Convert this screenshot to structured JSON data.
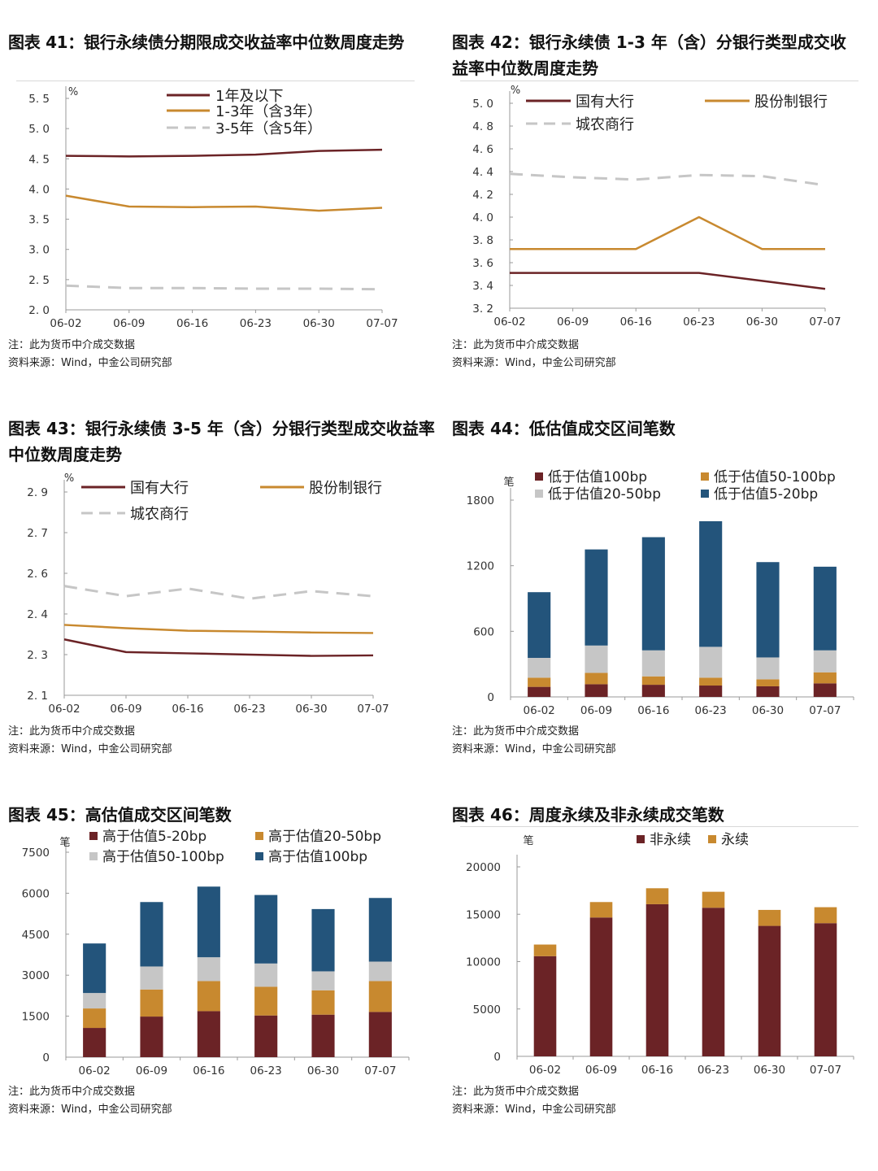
{
  "colors": {
    "red": "#6b2326",
    "gold": "#c8892f",
    "gray": "#c6c6c6",
    "blue": "#23547b",
    "axis": "#999999"
  },
  "figures": [
    {
      "title": "图表 41：银行永续债分期限成交收益率中位数周度走势",
      "note": "注：此为货币中介成交数据",
      "source": "资料来源：Wind，中金公司研究部"
    },
    {
      "title": "图表 42：银行永续债 1-3 年（含）分银行类型成交收益率中位数周度走势",
      "note": "注：此为货币中介成交数据",
      "source": "资料来源：Wind，中金公司研究部"
    },
    {
      "title": "图表 43：银行永续债 3-5 年（含）分银行类型成交收益率中位数周度走势",
      "note": "注：此为货币中介成交数据",
      "source": "资料来源：Wind，中金公司研究部"
    },
    {
      "title": "图表 44：低估值成交区间笔数",
      "note": "注：此为货币中介成交数据",
      "source": "资料来源：Wind，中金公司研究部"
    },
    {
      "title": "图表 45：高估值成交区间笔数",
      "note": "注：此为货币中介成交数据",
      "source": "资料来源：Wind，中金公司研究部"
    },
    {
      "title": "图表 46：周度永续及非永续成交笔数",
      "note": "注：此为货币中介成交数据",
      "source": "资料来源：Wind，中金公司研究部"
    }
  ],
  "chart_data": [
    {
      "type": "line",
      "unit": "%",
      "categories": [
        "06-02",
        "06-09",
        "06-16",
        "06-23",
        "06-30",
        "07-07"
      ],
      "ylim": [
        2.0,
        5.5
      ],
      "yticks": [
        2.0,
        2.5,
        3.0,
        3.5,
        4.0,
        4.5,
        5.0,
        5.5
      ],
      "ytick_labels": [
        "2. 0",
        "2. 5",
        "3. 0",
        "3. 5",
        "4. 0",
        "4. 5",
        "5. 0",
        "5. 5"
      ],
      "series": [
        {
          "name": "1年及以下",
          "color": "#6b2326",
          "dash": false,
          "values": [
            4.55,
            4.54,
            4.55,
            4.57,
            4.63,
            4.65
          ]
        },
        {
          "name": "1-3年（含3年）",
          "color": "#c8892f",
          "dash": false,
          "values": [
            3.89,
            3.71,
            3.7,
            3.71,
            3.64,
            3.69
          ]
        },
        {
          "name": "3-5年（含5年）",
          "color": "#c6c6c6",
          "dash": true,
          "values": [
            2.4,
            2.36,
            2.36,
            2.35,
            2.35,
            2.34
          ]
        }
      ]
    },
    {
      "type": "line",
      "unit": "%",
      "categories": [
        "06-02",
        "06-09",
        "06-16",
        "06-23",
        "06-30",
        "07-07"
      ],
      "ylim": [
        3.2,
        5.0
      ],
      "yticks": [
        3.2,
        3.4,
        3.6,
        3.8,
        4.0,
        4.2,
        4.4,
        4.6,
        4.8,
        5.0
      ],
      "ytick_labels": [
        "3. 2",
        "3. 4",
        "3. 6",
        "3. 8",
        "4. 0",
        "4. 2",
        "4. 4",
        "4. 6",
        "4. 8",
        "5. 0"
      ],
      "series": [
        {
          "name": "国有大行",
          "color": "#6b2326",
          "dash": false,
          "values": [
            3.51,
            3.51,
            3.51,
            3.51,
            3.44,
            3.37
          ]
        },
        {
          "name": "股份制银行",
          "color": "#c8892f",
          "dash": false,
          "values": [
            3.72,
            3.72,
            3.72,
            4.0,
            3.72,
            3.72
          ]
        },
        {
          "name": "城农商行",
          "color": "#c6c6c6",
          "dash": true,
          "values": [
            4.38,
            4.35,
            4.33,
            4.37,
            4.36,
            4.28
          ]
        }
      ]
    },
    {
      "type": "line",
      "unit": "%",
      "categories": [
        "06-02",
        "06-09",
        "06-16",
        "06-23",
        "06-30",
        "07-07"
      ],
      "ylim": [
        2.1,
        2.9
      ],
      "yticks": [
        2.1,
        2.26,
        2.42,
        2.58,
        2.74,
        2.9
      ],
      "ytick_labels": [
        "2. 1",
        "2. 3",
        "2. 4",
        "2. 6",
        "2. 7",
        "2. 9"
      ],
      "series": [
        {
          "name": "国有大行",
          "color": "#6b2326",
          "dash": false,
          "values": [
            2.32,
            2.27,
            2.265,
            2.26,
            2.255,
            2.257
          ]
        },
        {
          "name": "股份制银行",
          "color": "#c8892f",
          "dash": false,
          "values": [
            2.377,
            2.364,
            2.354,
            2.351,
            2.347,
            2.345
          ]
        },
        {
          "name": "城农商行",
          "color": "#c6c6c6",
          "dash": true,
          "values": [
            2.53,
            2.49,
            2.52,
            2.48,
            2.51,
            2.49
          ]
        }
      ]
    },
    {
      "type": "bar",
      "stacked": true,
      "unit": "笔",
      "categories": [
        "06-02",
        "06-09",
        "06-16",
        "06-23",
        "06-30",
        "07-07"
      ],
      "ylim": [
        0,
        1800
      ],
      "yticks": [
        0,
        600,
        1200,
        1800
      ],
      "ytick_labels": [
        "0",
        "600",
        "1200",
        "1800"
      ],
      "series": [
        {
          "name": "低于估值100bp",
          "color": "#6b2326",
          "values": [
            92,
            116,
            111,
            104,
            97,
            124
          ]
        },
        {
          "name": "低于估值50-100bp",
          "color": "#c8892f",
          "values": [
            84,
            104,
            77,
            72,
            64,
            101
          ]
        },
        {
          "name": "低于估值20-50bp",
          "color": "#c6c6c6",
          "values": [
            181,
            250,
            238,
            282,
            200,
            201
          ]
        },
        {
          "name": "低于估值5-20bp",
          "color": "#23547b",
          "values": [
            601,
            879,
            1035,
            1149,
            872,
            765
          ]
        }
      ]
    },
    {
      "type": "bar",
      "stacked": true,
      "unit": "笔",
      "categories": [
        "06-02",
        "06-09",
        "06-16",
        "06-23",
        "06-30",
        "07-07"
      ],
      "ylim": [
        0,
        7500
      ],
      "yticks": [
        0,
        1500,
        3000,
        4500,
        6000,
        7500
      ],
      "ytick_labels": [
        "0",
        "1500",
        "3000",
        "4500",
        "6000",
        "7500"
      ],
      "series": [
        {
          "name": "高于估值5-20bp",
          "color": "#6b2326",
          "values": [
            1070,
            1486,
            1684,
            1526,
            1556,
            1655
          ]
        },
        {
          "name": "高于估值20-50bp",
          "color": "#c8892f",
          "values": [
            713,
            991,
            1100,
            1050,
            891,
            1129
          ]
        },
        {
          "name": "高于估值50-100bp",
          "color": "#c6c6c6",
          "values": [
            565,
            842,
            872,
            852,
            694,
            713
          ]
        },
        {
          "name": "高于估值100bp",
          "color": "#23547b",
          "values": [
            1813,
            2358,
            2586,
            2507,
            2279,
            2329
          ]
        }
      ]
    },
    {
      "type": "bar",
      "stacked": true,
      "unit": "笔",
      "categories": [
        "06-02",
        "06-09",
        "06-16",
        "06-23",
        "06-30",
        "07-07"
      ],
      "ylim": [
        0,
        23000
      ],
      "yticks": [
        0,
        5000,
        10000,
        15000,
        20000
      ],
      "ytick_labels": [
        "0",
        "5000",
        "10000",
        "15000",
        "20000"
      ],
      "series": [
        {
          "name": "非永续",
          "color": "#6b2326",
          "values": [
            10571,
            14657,
            16057,
            15686,
            13771,
            14057
          ]
        },
        {
          "name": "永续",
          "color": "#c8892f",
          "values": [
            1229,
            1629,
            1686,
            1685,
            1686,
            1686
          ]
        }
      ]
    }
  ]
}
